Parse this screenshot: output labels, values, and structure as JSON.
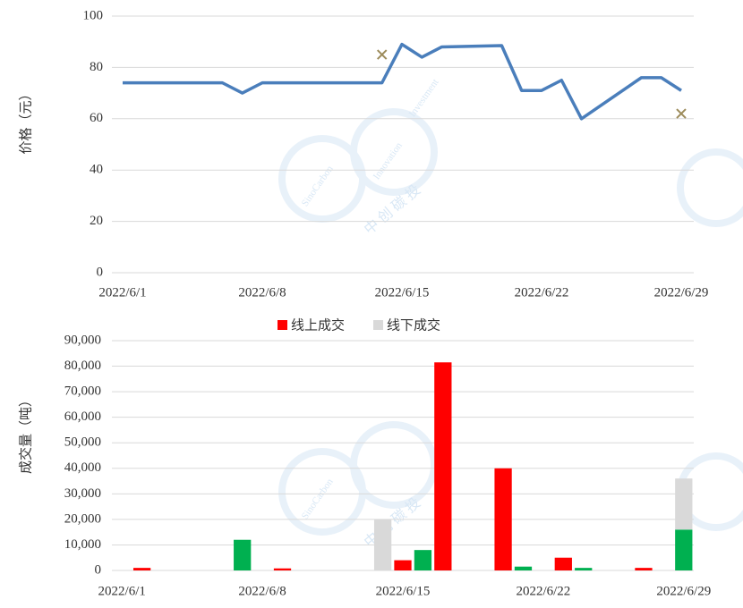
{
  "chart_data": [
    {
      "type": "line",
      "y_label": "价格（元）",
      "xlim": [
        "2022/6/1",
        "2022/6/29"
      ],
      "xticks": [
        "2022/6/1",
        "2022/6/8",
        "2022/6/15",
        "2022/6/22",
        "2022/6/29"
      ],
      "ylim": [
        0,
        100
      ],
      "yticks": [
        0,
        20,
        40,
        60,
        80,
        100
      ],
      "grid": true,
      "series": [
        {
          "color": "#4a7ebb",
          "x": [
            "2022/6/1",
            "2022/6/2",
            "2022/6/6",
            "2022/6/7",
            "2022/6/8",
            "2022/6/9",
            "2022/6/10",
            "2022/6/13",
            "2022/6/14",
            "2022/6/15",
            "2022/6/16",
            "2022/6/17",
            "2022/6/20",
            "2022/6/21",
            "2022/6/22",
            "2022/6/23",
            "2022/6/24",
            "2022/6/27",
            "2022/6/28",
            "2022/6/29"
          ],
          "values": [
            74,
            74,
            74,
            70,
            74,
            74,
            74,
            74,
            74,
            89,
            84,
            88,
            88.5,
            71,
            71,
            75,
            60,
            76,
            76,
            71
          ]
        },
        {
          "color": "#9c8b5a",
          "marker": "x",
          "x": [
            "2022/6/14",
            "2022/6/29"
          ],
          "values": [
            85,
            62
          ]
        }
      ]
    },
    {
      "type": "bar",
      "stacked": true,
      "y_label": "成交量（吨）",
      "categories": [
        "2022/6/1",
        null,
        null,
        null,
        null,
        null,
        null,
        "2022/6/8",
        null,
        null,
        null,
        null,
        null,
        null,
        "2022/6/15",
        null,
        null,
        null,
        null,
        null,
        null,
        "2022/6/22",
        null,
        null,
        null,
        null,
        null,
        null,
        "2022/6/29"
      ],
      "ylim": [
        0,
        90000
      ],
      "yticks": [
        0,
        {
          "value": 10000,
          "label": "10,000"
        },
        {
          "value": 20000,
          "label": "20,000"
        },
        {
          "value": 30000,
          "label": "30,000"
        },
        {
          "value": 40000,
          "label": "40,000"
        },
        {
          "value": 50000,
          "label": "50,000"
        },
        {
          "value": 60000,
          "label": "60,000"
        },
        {
          "value": 70000,
          "label": "70,000"
        },
        {
          "value": 80000,
          "label": "80,000"
        },
        {
          "value": 90000,
          "label": "90,000"
        }
      ],
      "grid": true,
      "series": [
        {
          "name": "线上成交",
          "color": "#ff0000",
          "values": [
            0,
            1000,
            0,
            0,
            0,
            0,
            0,
            0,
            800,
            0,
            0,
            0,
            0,
            0,
            4000,
            0,
            81500,
            0,
            0,
            40000,
            0,
            0,
            5000,
            0,
            0,
            0,
            1000,
            0,
            0
          ]
        },
        {
          "color": "#00b050",
          "values": [
            0,
            0,
            0,
            0,
            0,
            0,
            12000,
            0,
            0,
            0,
            0,
            0,
            0,
            0,
            0,
            8000,
            0,
            0,
            0,
            0,
            1500,
            0,
            0,
            1000,
            0,
            0,
            0,
            0,
            16000
          ]
        },
        {
          "name": "线下成交",
          "color": "#d9d9d9",
          "values": [
            0,
            0,
            0,
            0,
            0,
            0,
            0,
            0,
            0,
            0,
            0,
            0,
            0,
            20000,
            0,
            0,
            0,
            0,
            0,
            0,
            0,
            0,
            0,
            0,
            0,
            0,
            0,
            0,
            20000
          ]
        }
      ]
    }
  ],
  "watermark": {
    "brand": "SinoCarbon",
    "word1": "Innovation",
    "word2": "Investment",
    "cn": "中 创 碳 投"
  }
}
